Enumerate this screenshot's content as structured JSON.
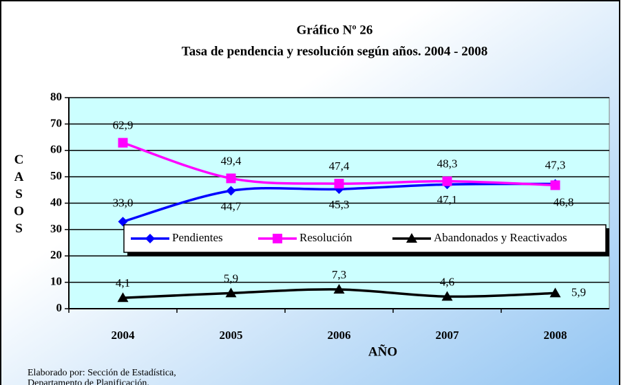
{
  "chart_data": {
    "type": "line",
    "title": "Gráfico Nº 26",
    "subtitle": "Tasa de pendencia y resolución según años. 2004 - 2008",
    "x_label": "AÑO",
    "y_label": "CASOS",
    "categories": [
      "2004",
      "2005",
      "2006",
      "2007",
      "2008"
    ],
    "series": [
      {
        "name": "Pendientes",
        "color": "#0000ff",
        "marker": "diamond",
        "values": [
          33.0,
          44.7,
          45.3,
          47.1,
          47.3
        ],
        "value_labels": [
          "33,0",
          "44,7",
          "45,3",
          "47,1",
          "47,3"
        ]
      },
      {
        "name": "Resolución",
        "color": "#ff00ff",
        "marker": "square",
        "values": [
          62.9,
          49.4,
          47.4,
          48.3,
          46.8
        ],
        "value_labels": [
          "62,9",
          "49,4",
          "47,4",
          "48,3",
          "46,8"
        ]
      },
      {
        "name": "Abandonados y Reactivados",
        "color": "#000000",
        "marker": "triangle",
        "values": [
          4.1,
          5.9,
          7.3,
          4.6,
          5.9
        ],
        "value_labels": [
          "4,1",
          "5,9",
          "7,3",
          "4,6",
          "5,9"
        ]
      }
    ],
    "ylim": [
      0,
      80
    ],
    "yticks": [
      0,
      10,
      20,
      30,
      40,
      50,
      60,
      70,
      80
    ],
    "grid": true,
    "footnote": [
      "Elaborado por: Sección de Estadística,",
      "Departamento de Planificación."
    ]
  }
}
